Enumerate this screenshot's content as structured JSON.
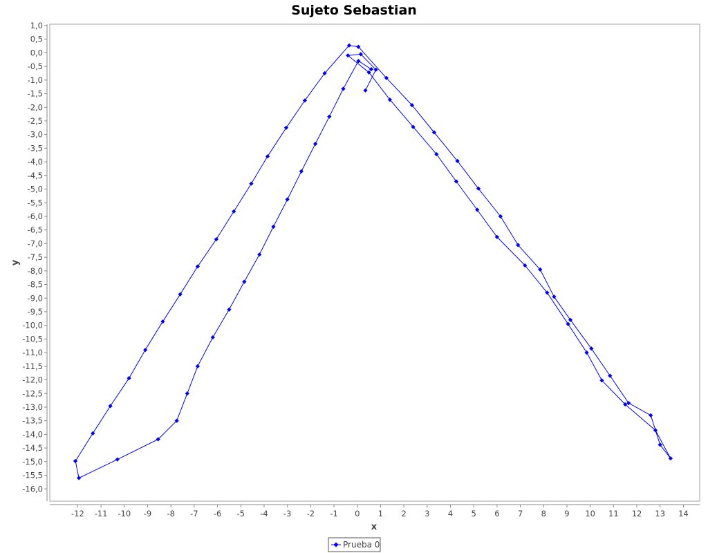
{
  "chart_data": {
    "type": "line",
    "title": "Sujeto Sebastian",
    "xlabel": "x",
    "ylabel": "y",
    "xlim": [
      -13.2,
      14.7
    ],
    "ylim": [
      -16.45,
      1.05
    ],
    "x_ticks": [
      -12,
      -11,
      -10,
      -9,
      -8,
      -7,
      -6,
      -5,
      -4,
      -3,
      -2,
      -1,
      0,
      1,
      2,
      3,
      4,
      5,
      6,
      7,
      8,
      9,
      10,
      11,
      12,
      13,
      14
    ],
    "x_tick_labels": [
      "-12",
      "-11",
      "-10",
      "-9",
      "-8",
      "-7",
      "-6",
      "-5",
      "-4",
      "-3",
      "-2",
      "-1",
      "0",
      "1",
      "2",
      "3",
      "4",
      "5",
      "6",
      "7",
      "8",
      "9",
      "10",
      "11",
      "12",
      "13",
      "14"
    ],
    "y_ticks": [
      1.0,
      0.5,
      0.0,
      -0.5,
      -1.0,
      -1.5,
      -2.0,
      -2.5,
      -3.0,
      -3.5,
      -4.0,
      -4.5,
      -5.0,
      -5.5,
      -6.0,
      -6.5,
      -7.0,
      -7.5,
      -8.0,
      -8.5,
      -9.0,
      -9.5,
      -10.0,
      -10.5,
      -11.0,
      -11.5,
      -12.0,
      -12.5,
      -13.0,
      -13.5,
      -14.0,
      -14.5,
      -15.0,
      -15.5,
      -16.0
    ],
    "y_tick_labels": [
      "1,0",
      "0,5",
      "0,0",
      "-0,5",
      "-1,0",
      "-1,5",
      "-2,0",
      "-2,5",
      "-3,0",
      "-3,5",
      "-4,0",
      "-4,5",
      "-5,0",
      "-5,5",
      "-6,0",
      "-6,5",
      "-7,0",
      "-7,5",
      "-8,0",
      "-8,5",
      "-9,0",
      "-9,5",
      "-10,0",
      "-10,5",
      "-11,0",
      "-11,5",
      "-12,0",
      "-12,5",
      "-13,0",
      "-13,5",
      "-14,0",
      "-14,5",
      "-15,0",
      "-15,5",
      "-16,0"
    ],
    "grid": false,
    "legend_position": "bottom",
    "series": [
      {
        "name": "Prueba 0",
        "color": "#0000ff",
        "points": [
          [
            0.35,
            -1.38
          ],
          [
            0.8,
            -0.62
          ],
          [
            0.15,
            -0.05
          ],
          [
            -0.4,
            -0.1
          ],
          [
            0.5,
            -0.72
          ],
          [
            1.4,
            -1.72
          ],
          [
            2.4,
            -2.72
          ],
          [
            3.4,
            -3.72
          ],
          [
            4.25,
            -4.72
          ],
          [
            5.15,
            -5.76
          ],
          [
            6.0,
            -6.76
          ],
          [
            7.2,
            -7.8
          ],
          [
            8.15,
            -8.8
          ],
          [
            9.05,
            -9.95
          ],
          [
            9.85,
            -11.0
          ],
          [
            10.5,
            -12.02
          ],
          [
            11.5,
            -12.9
          ],
          [
            12.8,
            -13.85
          ],
          [
            13.45,
            -14.88
          ],
          [
            13.0,
            -14.38
          ],
          [
            12.6,
            -13.3
          ],
          [
            11.65,
            -12.85
          ],
          [
            10.85,
            -11.85
          ],
          [
            10.05,
            -10.85
          ],
          [
            9.15,
            -9.8
          ],
          [
            8.45,
            -8.95
          ],
          [
            7.85,
            -7.95
          ],
          [
            6.9,
            -7.05
          ],
          [
            6.15,
            -6.0
          ],
          [
            5.2,
            -4.98
          ],
          [
            4.3,
            -3.97
          ],
          [
            3.3,
            -2.92
          ],
          [
            2.35,
            -1.92
          ],
          [
            1.25,
            -0.92
          ],
          [
            0.05,
            0.22
          ],
          [
            -0.35,
            0.27
          ],
          [
            -1.4,
            -0.75
          ],
          [
            -2.25,
            -1.75
          ],
          [
            -3.05,
            -2.75
          ],
          [
            -3.85,
            -3.8
          ],
          [
            -4.55,
            -4.8
          ],
          [
            -5.3,
            -5.82
          ],
          [
            -6.05,
            -6.84
          ],
          [
            -6.85,
            -7.84
          ],
          [
            -7.6,
            -8.86
          ],
          [
            -8.35,
            -9.86
          ],
          [
            -9.1,
            -10.9
          ],
          [
            -9.8,
            -11.94
          ],
          [
            -10.6,
            -12.96
          ],
          [
            -11.35,
            -13.96
          ],
          [
            -12.1,
            -14.98
          ],
          [
            -11.95,
            -15.6
          ],
          [
            -10.3,
            -14.92
          ],
          [
            -8.55,
            -14.18
          ],
          [
            -7.75,
            -13.5
          ],
          [
            -7.3,
            -12.5
          ],
          [
            -6.85,
            -11.5
          ],
          [
            -6.2,
            -10.44
          ],
          [
            -5.5,
            -9.42
          ],
          [
            -4.85,
            -8.4
          ],
          [
            -4.2,
            -7.4
          ],
          [
            -3.6,
            -6.38
          ],
          [
            -3.0,
            -5.38
          ],
          [
            -2.4,
            -4.35
          ],
          [
            -1.8,
            -3.34
          ],
          [
            -1.2,
            -2.34
          ],
          [
            -0.6,
            -1.32
          ],
          [
            0.05,
            -0.3
          ],
          [
            0.6,
            -0.6
          ]
        ]
      }
    ]
  }
}
